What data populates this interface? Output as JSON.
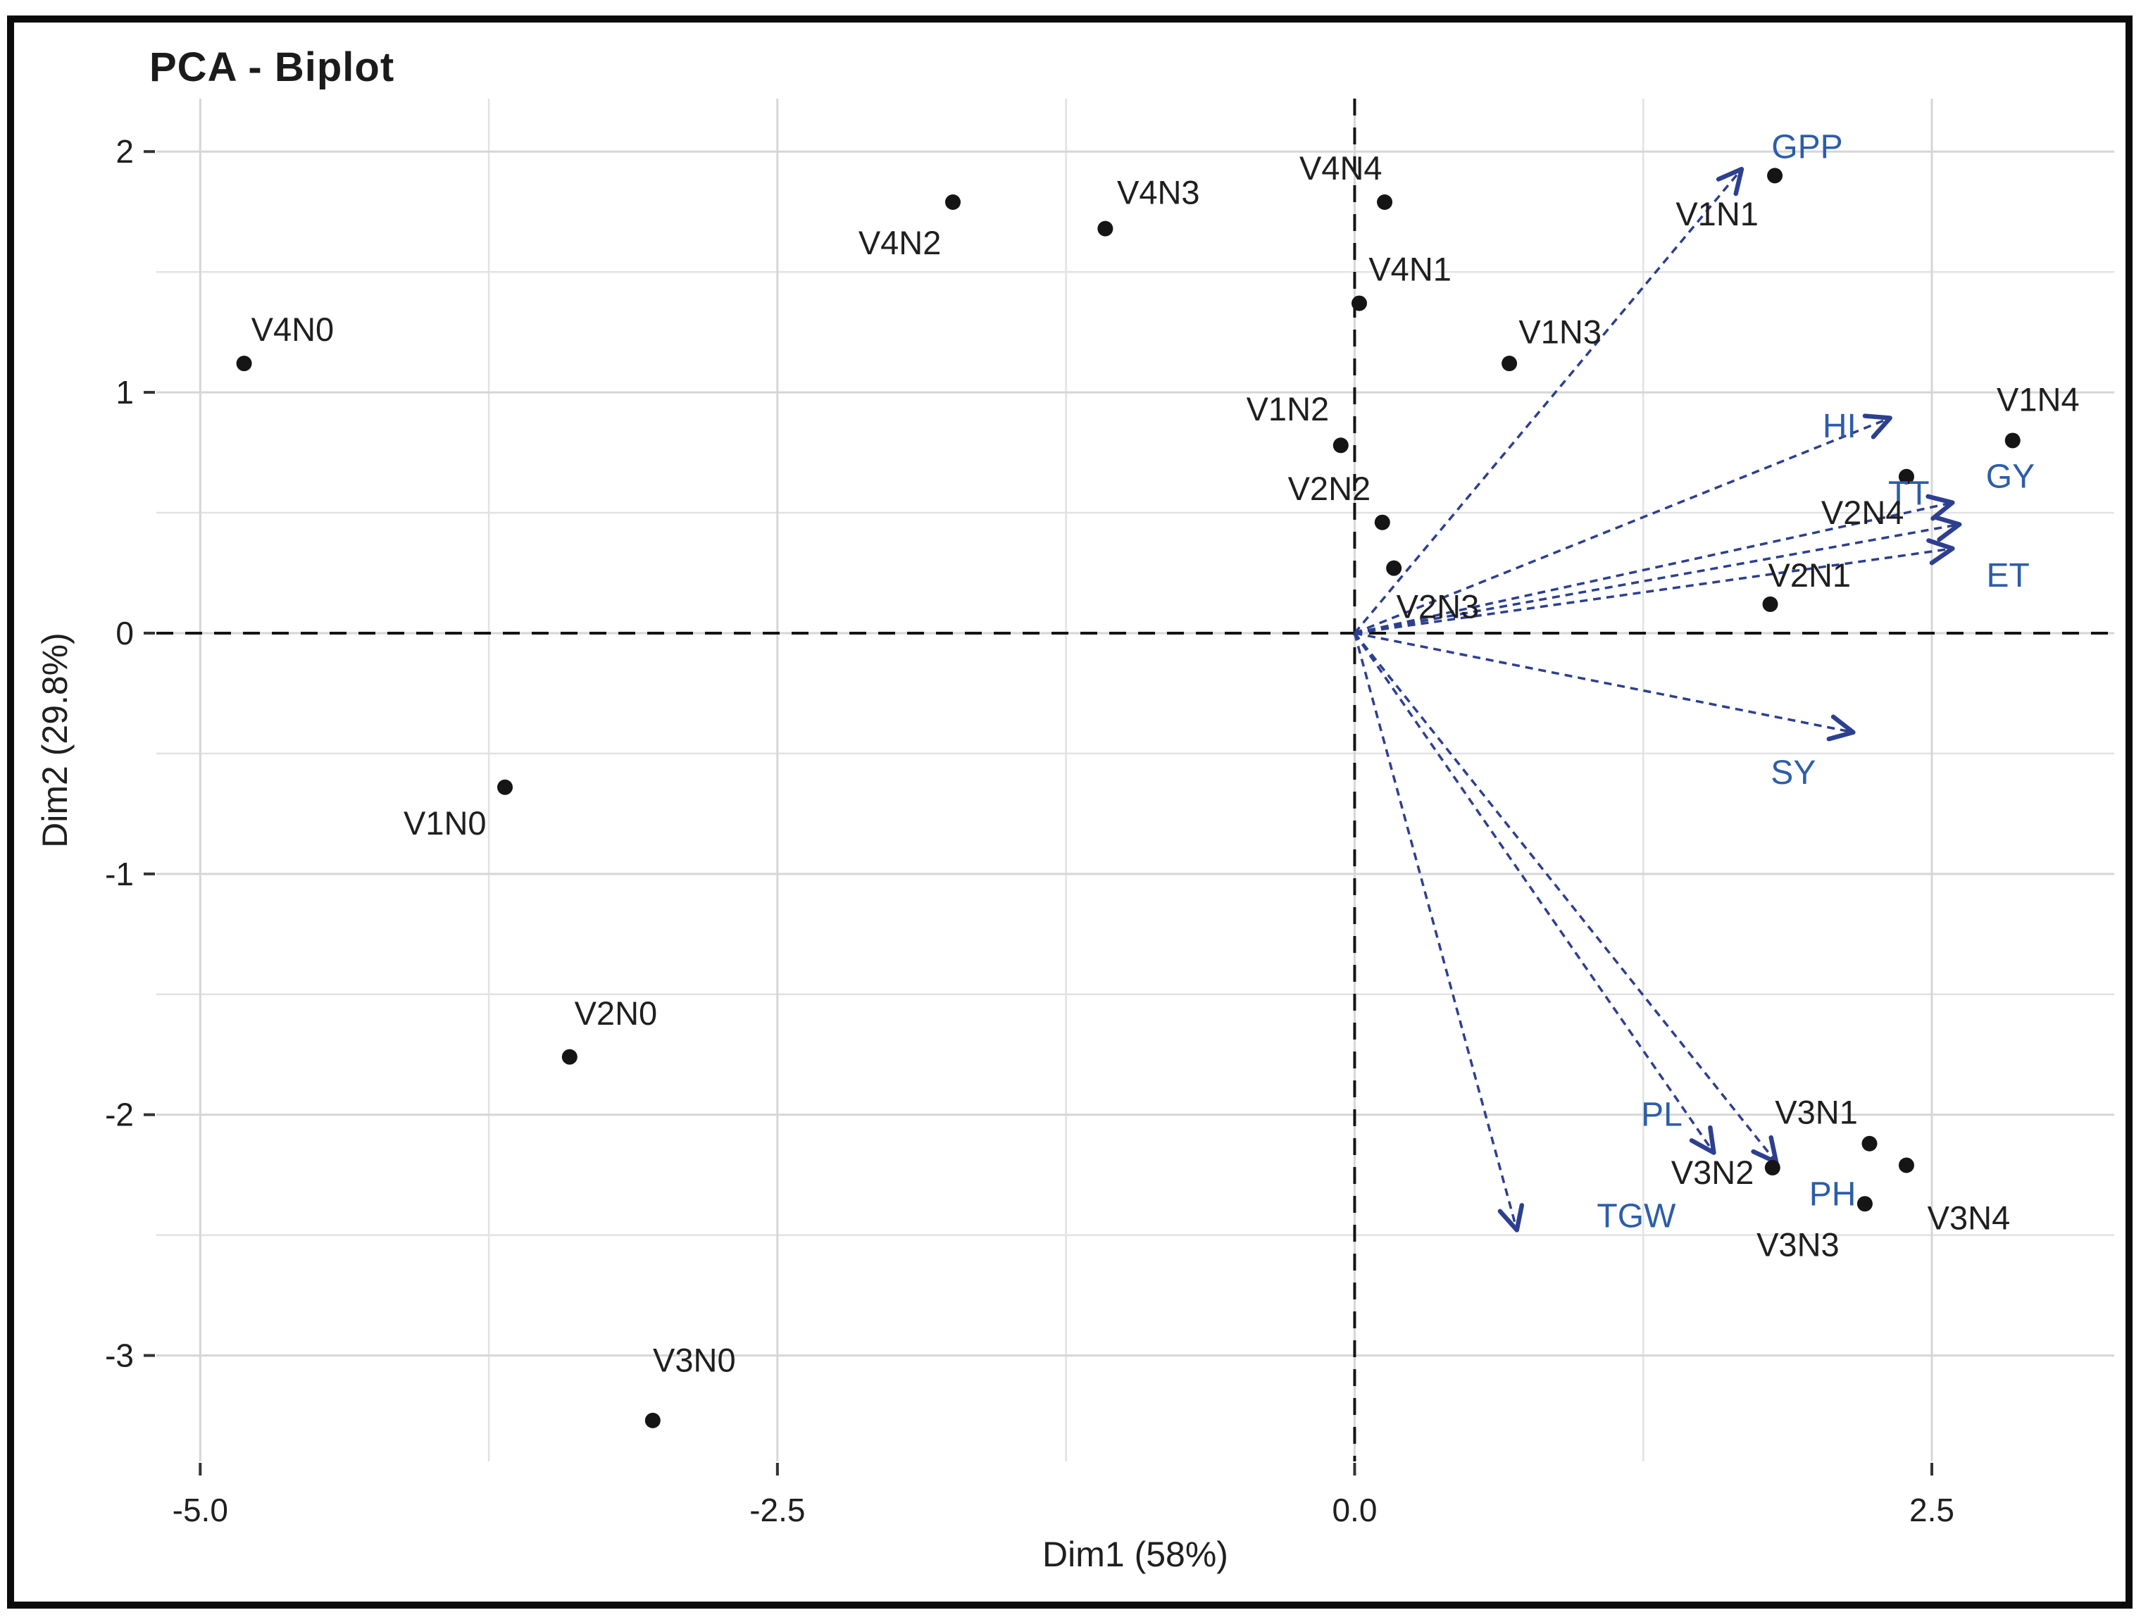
{
  "title": "PCA - Biplot",
  "axes": {
    "x_label": "Dim1 (58%)",
    "y_label": "Dim2 (29.8%)"
  },
  "chart_data": {
    "type": "scatter",
    "title": "PCA - Biplot",
    "xlabel": "Dim1 (58%)",
    "ylabel": "Dim2 (29.8%)",
    "xlim": [
      -5.19,
      3.29
    ],
    "ylim": [
      -3.44,
      2.22
    ],
    "grid": true,
    "legend_position": "none",
    "x_ticks": {
      "values": [
        -5.0,
        -2.5,
        0.0,
        2.5
      ],
      "labels": [
        "-5.0",
        "-2.5",
        "0.0",
        "2.5"
      ]
    },
    "y_ticks": {
      "values": [
        2,
        1,
        0,
        -1,
        -2,
        -3
      ],
      "labels": [
        "2",
        "1",
        "0",
        "-1",
        "-2",
        "-3"
      ]
    },
    "x_minor": [
      -3.75,
      -1.25,
      1.25
    ],
    "y_minor": [
      1.5,
      0.5,
      -0.5,
      -1.5,
      -2.5
    ],
    "reference_lines": {
      "vline_x": 0,
      "hline_y": 0,
      "style": "dashed"
    },
    "points": [
      {
        "name": "V4N0",
        "x": -4.81,
        "y": 1.12,
        "lx": -4.6,
        "ly": 1.26
      },
      {
        "name": "V1N0",
        "x": -3.68,
        "y": -0.64,
        "lx": -3.94,
        "ly": -0.79
      },
      {
        "name": "V2N0",
        "x": -3.4,
        "y": -1.76,
        "lx": -3.2,
        "ly": -1.58
      },
      {
        "name": "V3N0",
        "x": -3.04,
        "y": -3.27,
        "lx": -2.86,
        "ly": -3.02
      },
      {
        "name": "V4N2",
        "x": -1.74,
        "y": 1.79,
        "lx": -1.97,
        "ly": 1.62
      },
      {
        "name": "V4N3",
        "x": -1.08,
        "y": 1.68,
        "lx": -0.85,
        "ly": 1.83
      },
      {
        "name": "V4N4",
        "x": 0.13,
        "y": 1.79,
        "lx": -0.06,
        "ly": 1.93
      },
      {
        "name": "V4N1",
        "x": 0.02,
        "y": 1.37,
        "lx": 0.24,
        "ly": 1.51
      },
      {
        "name": "V1N2",
        "x": -0.06,
        "y": 0.78,
        "lx": -0.29,
        "ly": 0.93
      },
      {
        "name": "V2N2",
        "x": 0.12,
        "y": 0.46,
        "lx": -0.11,
        "ly": 0.6
      },
      {
        "name": "V2N3",
        "x": 0.17,
        "y": 0.27,
        "lx": 0.36,
        "ly": 0.11
      },
      {
        "name": "V1N3",
        "x": 0.67,
        "y": 1.12,
        "lx": 0.89,
        "ly": 1.25
      },
      {
        "name": "V1N1",
        "x": 1.82,
        "y": 1.9,
        "lx": 1.57,
        "ly": 1.74
      },
      {
        "name": "V1N4",
        "x": 2.85,
        "y": 0.8,
        "lx": 2.96,
        "ly": 0.97
      },
      {
        "name": "V2N4",
        "x": 2.39,
        "y": 0.65,
        "lx": 2.2,
        "ly": 0.5
      },
      {
        "name": "V2N1",
        "x": 1.8,
        "y": 0.12,
        "lx": 1.97,
        "ly": 0.24
      },
      {
        "name": "V3N1",
        "x": 2.23,
        "y": -2.12,
        "lx": 2.0,
        "ly": -1.99
      },
      {
        "name": "V3N4",
        "x": 2.39,
        "y": -2.21,
        "lx": 2.66,
        "ly": -2.43
      },
      {
        "name": "V3N2",
        "x": 1.81,
        "y": -2.22,
        "lx": 1.55,
        "ly": -2.24
      },
      {
        "name": "V3N3",
        "x": 2.21,
        "y": -2.37,
        "lx": 1.92,
        "ly": -2.54
      }
    ],
    "arrows": [
      {
        "name": "GPP",
        "x": 1.67,
        "y": 1.92,
        "lx": 1.96,
        "ly": 2.02
      },
      {
        "name": "HI",
        "x": 2.31,
        "y": 0.89,
        "lx": 2.1,
        "ly": 0.86
      },
      {
        "name": "TT",
        "x": 2.58,
        "y": 0.54,
        "lx": 2.4,
        "ly": 0.58
      },
      {
        "name": "GY",
        "x": 2.61,
        "y": 0.45,
        "lx": 2.84,
        "ly": 0.65
      },
      {
        "name": "ET",
        "x": 2.58,
        "y": 0.35,
        "lx": 2.83,
        "ly": 0.24
      },
      {
        "name": "SY",
        "x": 2.15,
        "y": -0.41,
        "lx": 1.9,
        "ly": -0.58
      },
      {
        "name": "PL",
        "x": 1.55,
        "y": -2.15,
        "lx": 1.33,
        "ly": -2.0
      },
      {
        "name": "PH",
        "x": 1.82,
        "y": -2.19,
        "lx": 2.07,
        "ly": -2.33
      },
      {
        "name": "TGW",
        "x": 0.7,
        "y": -2.47,
        "lx": 1.22,
        "ly": -2.42
      }
    ],
    "colors": {
      "point": "#151515",
      "point_label": "#1f1f1f",
      "arrow": "#2d3f8f",
      "arrow_label": "#2d5da9",
      "grid_major": "#d6d6d6",
      "grid_minor": "#e2e2e2",
      "reference_line": "#141414",
      "tick": "#333333",
      "frame": "#0b0b0b"
    }
  }
}
